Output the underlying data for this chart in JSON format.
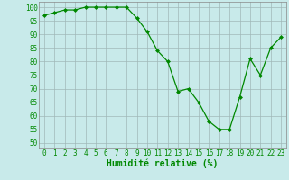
{
  "x": [
    0,
    1,
    2,
    3,
    4,
    5,
    6,
    7,
    8,
    9,
    10,
    11,
    12,
    13,
    14,
    15,
    16,
    17,
    18,
    19,
    20,
    21,
    22,
    23
  ],
  "y": [
    97,
    98,
    99,
    99,
    100,
    100,
    100,
    100,
    100,
    96,
    91,
    84,
    80,
    69,
    70,
    65,
    58,
    55,
    55,
    67,
    81,
    75,
    85,
    89
  ],
  "line_color": "#008800",
  "marker": "D",
  "marker_size": 2,
  "bg_color": "#c8eaea",
  "grid_color": "#a0b8b8",
  "xlabel": "Humidité relative (%)",
  "xlabel_color": "#008800",
  "yticks": [
    50,
    55,
    60,
    65,
    70,
    75,
    80,
    85,
    90,
    95,
    100
  ],
  "ylim": [
    48,
    102
  ],
  "xlim": [
    -0.5,
    23.5
  ],
  "tick_color": "#008800",
  "label_fontsize": 7,
  "tick_fontsize": 5.5
}
